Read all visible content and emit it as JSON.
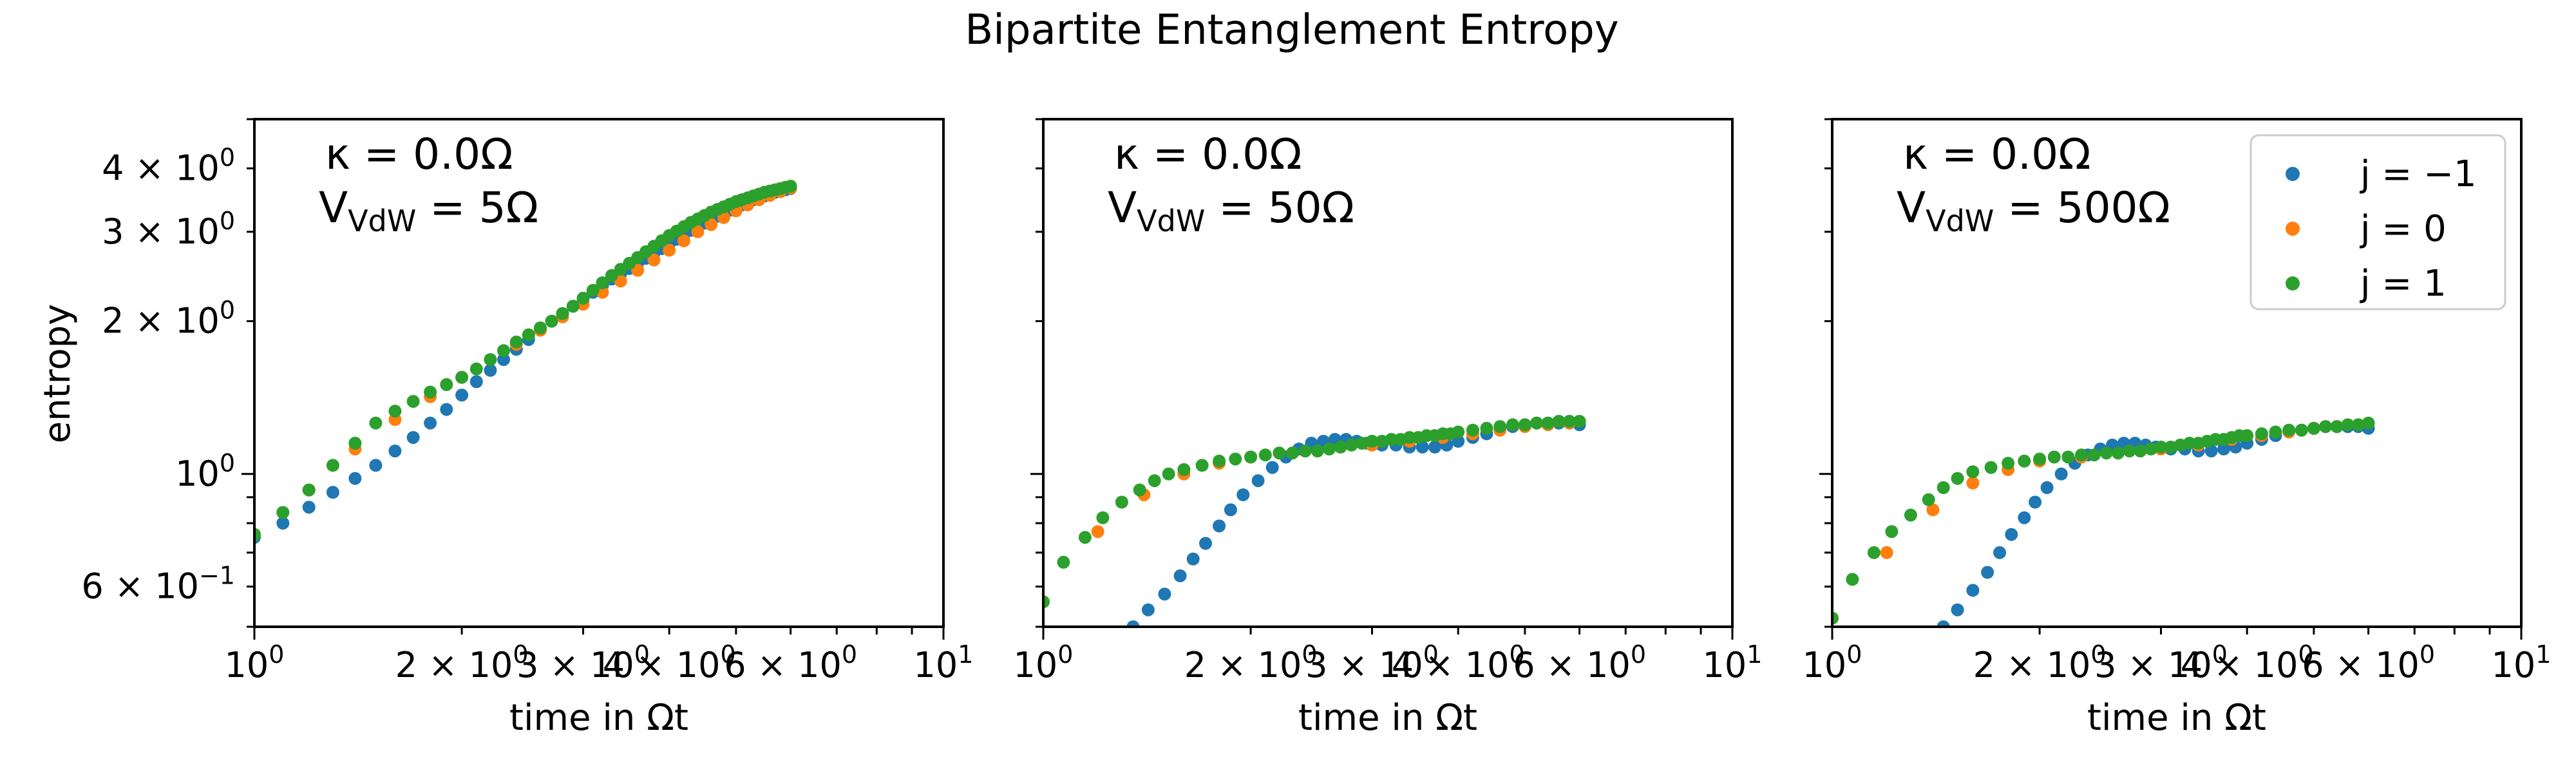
{
  "chart_data": {
    "type": "scatter",
    "title": "Bipartite Entanglement Entropy",
    "xlabel": "time in Ωt",
    "ylabel": "entropy",
    "xscale": "log",
    "yscale": "log",
    "xlim": [
      1,
      10
    ],
    "ylim": [
      0.5,
      5
    ],
    "legend": {
      "placement": "top-right (third panel)",
      "entries": [
        {
          "label": "j = −1",
          "color": "#1f77b4"
        },
        {
          "label": "j = 0",
          "color": "#ff7f0e"
        },
        {
          "label": "j = 1",
          "color": "#2ca02c"
        }
      ]
    },
    "x_ticks": [
      {
        "value": 1,
        "base": "10",
        "exp": "0"
      },
      {
        "value": 2,
        "base": "2 × 10",
        "exp": "0"
      },
      {
        "value": 3,
        "base": "3 × 10",
        "exp": "0"
      },
      {
        "value": 4,
        "base": "4 × 10",
        "exp": "0"
      },
      {
        "value": 6,
        "base": "6 × 10",
        "exp": "0"
      },
      {
        "value": 10,
        "base": "10",
        "exp": "1"
      }
    ],
    "y_ticks": [
      {
        "value": 4,
        "base": "4 × 10",
        "exp": "0"
      },
      {
        "value": 3,
        "base": "3 × 10",
        "exp": "0"
      },
      {
        "value": 2,
        "base": "2 × 10",
        "exp": "0"
      },
      {
        "value": 1,
        "base": "10",
        "exp": "0"
      },
      {
        "value": 0.6,
        "base": "6 × 10",
        "exp": "−1"
      }
    ],
    "panels": [
      {
        "annotation": {
          "kappa": "κ = 0.0Ω",
          "v_main": "V",
          "v_sub": "VdW",
          "v_rest": " = 5Ω"
        },
        "series": [
          {
            "name": "j = −1",
            "color": "#1f77b4",
            "x": [
              1.0,
              1.1,
              1.2,
              1.3,
              1.4,
              1.5,
              1.6,
              1.7,
              1.8,
              1.9,
              2.0,
              2.1,
              2.2,
              2.3,
              2.4,
              2.5,
              2.6,
              2.7,
              2.8,
              2.9,
              3.0,
              3.1,
              3.2,
              3.3,
              3.4,
              3.5,
              3.6,
              3.7,
              3.8,
              3.9,
              4.0,
              4.1,
              4.2,
              4.3,
              4.4,
              4.5,
              4.6,
              4.7,
              4.8,
              4.9,
              5.0,
              5.1,
              5.2,
              5.3,
              5.4,
              5.5,
              5.6,
              5.7,
              5.8,
              5.9,
              6.0
            ],
            "y": [
              0.75,
              0.8,
              0.86,
              0.92,
              0.98,
              1.04,
              1.11,
              1.18,
              1.26,
              1.34,
              1.43,
              1.52,
              1.6,
              1.68,
              1.76,
              1.84,
              1.92,
              2.0,
              2.07,
              2.14,
              2.21,
              2.28,
              2.35,
              2.42,
              2.48,
              2.54,
              2.6,
              2.66,
              2.72,
              2.78,
              2.84,
              2.9,
              2.96,
              3.02,
              3.07,
              3.12,
              3.17,
              3.22,
              3.27,
              3.31,
              3.35,
              3.39,
              3.43,
              3.47,
              3.5,
              3.53,
              3.56,
              3.59,
              3.61,
              3.63,
              3.65
            ]
          },
          {
            "name": "j = 0",
            "color": "#ff7f0e",
            "x": [
              1.0,
              1.2,
              1.4,
              1.6,
              1.8,
              2.0,
              2.2,
              2.4,
              2.6,
              2.8,
              3.0,
              3.2,
              3.4,
              3.6,
              3.8,
              4.0,
              4.2,
              4.4,
              4.6,
              4.8,
              5.0,
              5.2,
              5.4,
              5.6,
              5.8,
              6.0
            ],
            "y": [
              0.76,
              0.93,
              1.12,
              1.28,
              1.42,
              1.55,
              1.68,
              1.8,
              1.92,
              2.04,
              2.16,
              2.28,
              2.4,
              2.52,
              2.64,
              2.76,
              2.88,
              3.0,
              3.1,
              3.2,
              3.3,
              3.39,
              3.47,
              3.54,
              3.6,
              3.66
            ]
          },
          {
            "name": "j = 1",
            "color": "#2ca02c",
            "x": [
              1.0,
              1.1,
              1.2,
              1.3,
              1.4,
              1.5,
              1.6,
              1.7,
              1.8,
              1.9,
              2.0,
              2.1,
              2.2,
              2.3,
              2.4,
              2.5,
              2.6,
              2.7,
              2.8,
              2.9,
              3.0,
              3.1,
              3.2,
              3.3,
              3.4,
              3.5,
              3.6,
              3.7,
              3.8,
              3.9,
              4.0,
              4.1,
              4.2,
              4.3,
              4.4,
              4.5,
              4.6,
              4.7,
              4.8,
              4.9,
              5.0,
              5.1,
              5.2,
              5.3,
              5.4,
              5.5,
              5.6,
              5.7,
              5.8,
              5.9,
              6.0
            ],
            "y": [
              0.76,
              0.84,
              0.93,
              1.04,
              1.15,
              1.26,
              1.33,
              1.39,
              1.45,
              1.5,
              1.55,
              1.61,
              1.68,
              1.75,
              1.82,
              1.88,
              1.94,
              2.0,
              2.07,
              2.14,
              2.22,
              2.3,
              2.38,
              2.46,
              2.53,
              2.6,
              2.67,
              2.74,
              2.81,
              2.88,
              2.95,
              3.01,
              3.07,
              3.13,
              3.18,
              3.23,
              3.28,
              3.32,
              3.36,
              3.4,
              3.44,
              3.47,
              3.5,
              3.53,
              3.56,
              3.59,
              3.61,
              3.63,
              3.65,
              3.67,
              3.69
            ]
          }
        ]
      },
      {
        "annotation": {
          "kappa": "κ = 0.0Ω",
          "v_main": "V",
          "v_sub": "VdW",
          "v_rest": " = 50Ω"
        },
        "series": [
          {
            "name": "j = −1",
            "color": "#1f77b4",
            "x": [
              1.35,
              1.42,
              1.5,
              1.58,
              1.65,
              1.72,
              1.8,
              1.87,
              1.95,
              2.05,
              2.15,
              2.25,
              2.35,
              2.45,
              2.55,
              2.65,
              2.75,
              2.85,
              2.95,
              3.1,
              3.25,
              3.4,
              3.55,
              3.7,
              3.85,
              4.0,
              4.2,
              4.4,
              4.6,
              4.8,
              5.0,
              5.2,
              5.4,
              5.6,
              5.8,
              6.0
            ],
            "y": [
              0.5,
              0.54,
              0.58,
              0.63,
              0.68,
              0.73,
              0.79,
              0.85,
              0.91,
              0.97,
              1.03,
              1.08,
              1.12,
              1.15,
              1.16,
              1.17,
              1.17,
              1.16,
              1.15,
              1.14,
              1.14,
              1.13,
              1.13,
              1.13,
              1.14,
              1.16,
              1.18,
              1.2,
              1.22,
              1.24,
              1.25,
              1.26,
              1.26,
              1.26,
              1.26,
              1.25
            ]
          },
          {
            "name": "j = 0",
            "color": "#ff7f0e",
            "x": [
              1.0,
              1.2,
              1.4,
              1.6,
              1.8,
              2.0,
              2.3,
              2.6,
              3.0,
              3.4,
              3.8,
              4.2,
              4.6,
              5.0,
              5.4,
              5.8
            ],
            "y": [
              0.56,
              0.77,
              0.91,
              1.0,
              1.05,
              1.08,
              1.1,
              1.12,
              1.14,
              1.16,
              1.18,
              1.2,
              1.22,
              1.24,
              1.25,
              1.26
            ]
          },
          {
            "name": "j = 1",
            "color": "#2ca02c",
            "x": [
              1.0,
              1.07,
              1.15,
              1.22,
              1.3,
              1.38,
              1.45,
              1.52,
              1.6,
              1.7,
              1.8,
              1.9,
              2.0,
              2.1,
              2.2,
              2.3,
              2.4,
              2.5,
              2.6,
              2.7,
              2.8,
              2.9,
              3.0,
              3.1,
              3.2,
              3.3,
              3.4,
              3.5,
              3.6,
              3.7,
              3.8,
              3.9,
              4.0,
              4.2,
              4.4,
              4.6,
              4.8,
              5.0,
              5.2,
              5.4,
              5.6,
              5.8,
              6.0
            ],
            "y": [
              0.56,
              0.67,
              0.75,
              0.82,
              0.88,
              0.93,
              0.97,
              1.0,
              1.02,
              1.04,
              1.06,
              1.07,
              1.08,
              1.09,
              1.1,
              1.1,
              1.11,
              1.11,
              1.12,
              1.13,
              1.14,
              1.15,
              1.16,
              1.16,
              1.17,
              1.17,
              1.18,
              1.18,
              1.19,
              1.19,
              1.2,
              1.2,
              1.21,
              1.22,
              1.23,
              1.24,
              1.25,
              1.25,
              1.26,
              1.26,
              1.27,
              1.27,
              1.27
            ]
          }
        ]
      },
      {
        "annotation": {
          "kappa": "κ = 0.0Ω",
          "v_main": "V",
          "v_sub": "VdW",
          "v_rest": " = 500Ω"
        },
        "series": [
          {
            "name": "j = −1",
            "color": "#1f77b4",
            "x": [
              1.45,
              1.52,
              1.6,
              1.68,
              1.75,
              1.82,
              1.9,
              1.97,
              2.05,
              2.15,
              2.25,
              2.35,
              2.45,
              2.55,
              2.65,
              2.75,
              2.85,
              2.95,
              3.1,
              3.25,
              3.4,
              3.55,
              3.7,
              3.85,
              4.0,
              4.2,
              4.4,
              4.6,
              4.8,
              5.0,
              5.2,
              5.4,
              5.6,
              5.8,
              6.0
            ],
            "y": [
              0.5,
              0.54,
              0.59,
              0.64,
              0.7,
              0.76,
              0.82,
              0.88,
              0.94,
              1.0,
              1.05,
              1.09,
              1.12,
              1.14,
              1.15,
              1.15,
              1.14,
              1.13,
              1.12,
              1.12,
              1.11,
              1.11,
              1.12,
              1.13,
              1.15,
              1.17,
              1.19,
              1.21,
              1.22,
              1.23,
              1.24,
              1.24,
              1.24,
              1.24,
              1.23
            ]
          },
          {
            "name": "j = 0",
            "color": "#ff7f0e",
            "x": [
              1.0,
              1.2,
              1.4,
              1.6,
              1.8,
              2.0,
              2.3,
              2.6,
              3.0,
              3.4,
              3.8,
              4.2,
              4.6,
              5.0,
              5.4,
              5.8
            ],
            "y": [
              0.52,
              0.7,
              0.85,
              0.96,
              1.02,
              1.06,
              1.08,
              1.1,
              1.12,
              1.14,
              1.17,
              1.19,
              1.21,
              1.23,
              1.24,
              1.25
            ]
          },
          {
            "name": "j = 1",
            "color": "#2ca02c",
            "x": [
              1.0,
              1.07,
              1.15,
              1.22,
              1.3,
              1.38,
              1.45,
              1.52,
              1.6,
              1.7,
              1.8,
              1.9,
              2.0,
              2.1,
              2.2,
              2.3,
              2.4,
              2.5,
              2.6,
              2.7,
              2.8,
              2.9,
              3.0,
              3.1,
              3.2,
              3.3,
              3.4,
              3.5,
              3.6,
              3.7,
              3.8,
              3.9,
              4.0,
              4.2,
              4.4,
              4.6,
              4.8,
              5.0,
              5.2,
              5.4,
              5.6,
              5.8,
              6.0
            ],
            "y": [
              0.52,
              0.62,
              0.7,
              0.77,
              0.83,
              0.89,
              0.94,
              0.98,
              1.01,
              1.03,
              1.05,
              1.06,
              1.07,
              1.08,
              1.08,
              1.09,
              1.09,
              1.1,
              1.1,
              1.11,
              1.11,
              1.12,
              1.13,
              1.13,
              1.14,
              1.15,
              1.15,
              1.16,
              1.17,
              1.17,
              1.18,
              1.19,
              1.19,
              1.2,
              1.21,
              1.22,
              1.22,
              1.23,
              1.24,
              1.24,
              1.25,
              1.25,
              1.26
            ]
          }
        ]
      }
    ]
  }
}
